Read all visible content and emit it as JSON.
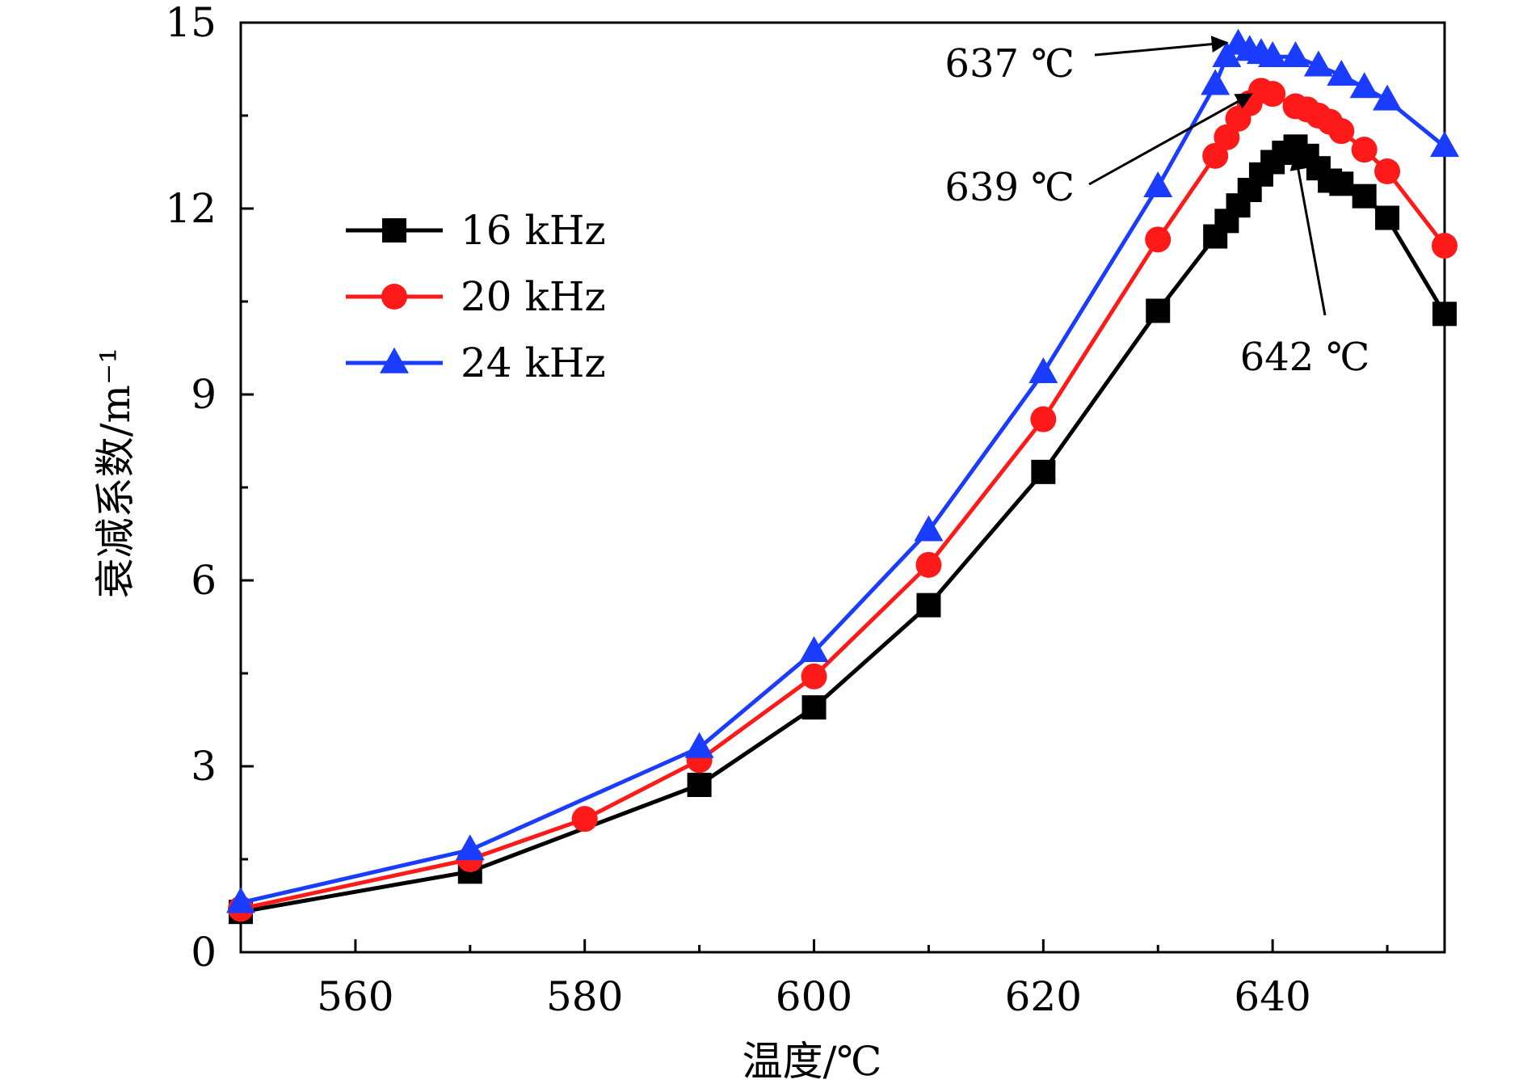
{
  "chart_data": {
    "type": "line",
    "title": "",
    "xlabel": "温度/℃",
    "ylabel": "衰减系数/m⁻¹",
    "xlim": [
      550,
      655
    ],
    "ylim": [
      0,
      15
    ],
    "x_ticks": [
      560,
      580,
      600,
      620,
      640
    ],
    "y_ticks": [
      0,
      3,
      6,
      9,
      12,
      15
    ],
    "grid": false,
    "legend_position": "upper-left",
    "series": [
      {
        "name": "16 kHz",
        "color": "#000000",
        "marker": "square",
        "points": [
          [
            550,
            0.65
          ],
          [
            570,
            1.3
          ],
          [
            590,
            2.7
          ],
          [
            600,
            3.95
          ],
          [
            610,
            5.6
          ],
          [
            620,
            7.75
          ],
          [
            630,
            10.35
          ],
          [
            635,
            11.55
          ],
          [
            636,
            11.8
          ],
          [
            637,
            12.05
          ],
          [
            638,
            12.3
          ],
          [
            639,
            12.55
          ],
          [
            640,
            12.75
          ],
          [
            641,
            12.9
          ],
          [
            642,
            13.0
          ],
          [
            643,
            12.85
          ],
          [
            644,
            12.65
          ],
          [
            645,
            12.45
          ],
          [
            646,
            12.4
          ],
          [
            648,
            12.2
          ],
          [
            650,
            11.85
          ],
          [
            655,
            10.3
          ]
        ]
      },
      {
        "name": "20 kHz",
        "color": "#ff1a1a",
        "marker": "circle",
        "points": [
          [
            550,
            0.7
          ],
          [
            570,
            1.5
          ],
          [
            580,
            2.15
          ],
          [
            590,
            3.1
          ],
          [
            600,
            4.45
          ],
          [
            610,
            6.25
          ],
          [
            620,
            8.6
          ],
          [
            630,
            11.5
          ],
          [
            635,
            12.85
          ],
          [
            636,
            13.15
          ],
          [
            637,
            13.45
          ],
          [
            638,
            13.7
          ],
          [
            639,
            13.9
          ],
          [
            640,
            13.85
          ],
          [
            642,
            13.65
          ],
          [
            643,
            13.6
          ],
          [
            644,
            13.5
          ],
          [
            645,
            13.4
          ],
          [
            646,
            13.25
          ],
          [
            648,
            12.95
          ],
          [
            650,
            12.6
          ],
          [
            655,
            11.4
          ]
        ]
      },
      {
        "name": "24 kHz",
        "color": "#1a3cff",
        "marker": "triangle",
        "points": [
          [
            550,
            0.8
          ],
          [
            570,
            1.65
          ],
          [
            590,
            3.3
          ],
          [
            600,
            4.85
          ],
          [
            610,
            6.8
          ],
          [
            620,
            9.35
          ],
          [
            630,
            12.35
          ],
          [
            635,
            14.0
          ],
          [
            636,
            14.45
          ],
          [
            637,
            14.65
          ],
          [
            638,
            14.55
          ],
          [
            639,
            14.5
          ],
          [
            640,
            14.45
          ],
          [
            642,
            14.45
          ],
          [
            644,
            14.3
          ],
          [
            646,
            14.15
          ],
          [
            648,
            13.95
          ],
          [
            650,
            13.75
          ],
          [
            655,
            13.0
          ]
        ]
      }
    ],
    "annotations": [
      {
        "text": "637 ℃",
        "target": [
          637,
          14.65
        ]
      },
      {
        "text": "639 ℃",
        "target": [
          639,
          13.9
        ]
      },
      {
        "text": "642 ℃",
        "target": [
          642,
          13.0
        ]
      }
    ]
  }
}
